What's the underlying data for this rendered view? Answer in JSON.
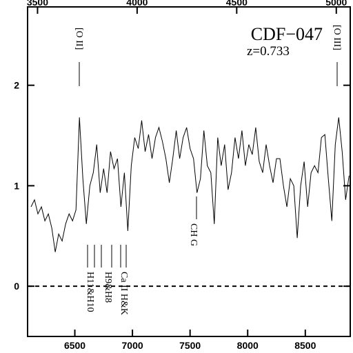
{
  "chart_data": {
    "type": "line",
    "title": "CDF−047",
    "subtitle": "z=0.733",
    "annotations": [
      "[O II]",
      "[O III]",
      "CH G",
      "H11&H10",
      "H9&H8",
      "Ca II H&K"
    ],
    "x": [
      6120,
      6150,
      6180,
      6210,
      6240,
      6270,
      6300,
      6330,
      6360,
      6390,
      6420,
      6450,
      6480,
      6510,
      6540,
      6570,
      6600,
      6630,
      6660,
      6690,
      6720,
      6750,
      6780,
      6810,
      6840,
      6870,
      6900,
      6930,
      6960,
      6990,
      7020,
      7050,
      7080,
      7110,
      7140,
      7170,
      7200,
      7230,
      7260,
      7290,
      7320,
      7350,
      7380,
      7410,
      7440,
      7470,
      7500,
      7530,
      7560,
      7590,
      7620,
      7650,
      7680,
      7710,
      7740,
      7770,
      7800,
      7830,
      7860,
      7890,
      7920,
      7950,
      7980,
      8010,
      8040,
      8070,
      8100,
      8130,
      8160,
      8190,
      8220,
      8250,
      8280,
      8310,
      8340,
      8370,
      8400,
      8430,
      8460,
      8490,
      8520,
      8550,
      8580,
      8610,
      8640,
      8670,
      8700,
      8730,
      8760,
      8790,
      8820,
      8850,
      8880
    ],
    "series": [
      {
        "color": "#000000",
        "values": [
          0.79,
          0.86,
          0.72,
          0.79,
          0.65,
          0.72,
          0.58,
          0.34,
          0.52,
          0.45,
          0.62,
          0.72,
          0.65,
          0.76,
          1.68,
          1.07,
          0.62,
          1.0,
          1.13,
          1.41,
          0.93,
          1.17,
          0.93,
          1.34,
          1.17,
          1.27,
          0.79,
          1.13,
          0.55,
          1.2,
          1.48,
          1.37,
          1.65,
          1.34,
          1.51,
          1.27,
          1.48,
          1.58,
          1.44,
          1.27,
          1.03,
          1.27,
          1.55,
          1.27,
          1.48,
          1.58,
          1.37,
          1.27,
          0.93,
          1.07,
          1.55,
          1.2,
          1.13,
          0.62,
          1.48,
          1.2,
          1.41,
          0.96,
          1.13,
          1.48,
          1.27,
          1.55,
          1.2,
          1.41,
          1.31,
          1.58,
          1.24,
          1.13,
          1.41,
          1.2,
          1.03,
          1.27,
          1.27,
          1.0,
          0.79,
          1.07,
          1.0,
          0.48,
          1.0,
          1.24,
          0.79,
          1.13,
          1.2,
          1.13,
          1.48,
          1.51,
          1.07,
          0.65,
          1.41,
          1.68,
          1.34,
          0.86,
          1.1
        ]
      }
    ],
    "xlim": [
      6090,
      8890
    ],
    "xticks": [
      6500,
      7000,
      7500,
      8000,
      8500
    ],
    "x2lim": [
      3450,
      5070
    ],
    "x2ticks": [
      3500,
      4000,
      4500,
      5000
    ],
    "ylim": [
      -0.5,
      2.78
    ],
    "yticks": [
      0,
      1,
      2
    ]
  }
}
